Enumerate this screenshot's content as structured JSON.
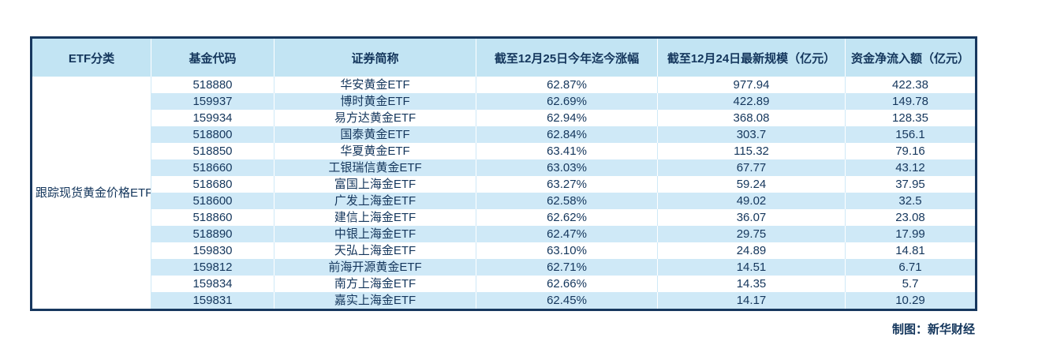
{
  "chart_data": {
    "type": "table",
    "title": "",
    "columns": [
      "ETF分类",
      "基金代码",
      "证券简称",
      "截至12月25日今年迄今涨幅",
      "截至12月24日最新规模（亿元）",
      "资金净流入额（亿元）"
    ],
    "category": "跟踪现货黄金价格ETF",
    "rows": [
      [
        "518880",
        "华安黄金ETF",
        "62.87%",
        "977.94",
        "422.38"
      ],
      [
        "159937",
        "博时黄金ETF",
        "62.69%",
        "422.89",
        "149.78"
      ],
      [
        "159934",
        "易方达黄金ETF",
        "62.94%",
        "368.08",
        "128.35"
      ],
      [
        "518800",
        "国泰黄金ETF",
        "62.84%",
        "303.7",
        "156.1"
      ],
      [
        "518850",
        "华夏黄金ETF",
        "63.41%",
        "115.32",
        "79.16"
      ],
      [
        "518660",
        "工银瑞信黄金ETF",
        "63.03%",
        "67.77",
        "43.12"
      ],
      [
        "518680",
        "富国上海金ETF",
        "63.27%",
        "59.24",
        "37.95"
      ],
      [
        "518600",
        "广发上海金ETF",
        "62.58%",
        "49.02",
        "32.5"
      ],
      [
        "518860",
        "建信上海金ETF",
        "62.62%",
        "36.07",
        "23.08"
      ],
      [
        "518890",
        "中银上海金ETF",
        "62.47%",
        "29.75",
        "17.99"
      ],
      [
        "159830",
        "天弘上海金ETF",
        "63.10%",
        "24.89",
        "14.81"
      ],
      [
        "159812",
        "前海开源黄金ETF",
        "62.71%",
        "14.51",
        "6.71"
      ],
      [
        "159834",
        "南方上海金ETF",
        "62.66%",
        "14.35",
        "5.7"
      ],
      [
        "159831",
        "嘉实上海金ETF",
        "62.45%",
        "14.17",
        "10.29"
      ]
    ]
  },
  "footer": {
    "credit": "制图：新华财经"
  },
  "colors": {
    "border": "#17375e",
    "header_bg": "#c2e4f3",
    "stripe_bg": "#cfe9f7",
    "text": "#14365c"
  }
}
